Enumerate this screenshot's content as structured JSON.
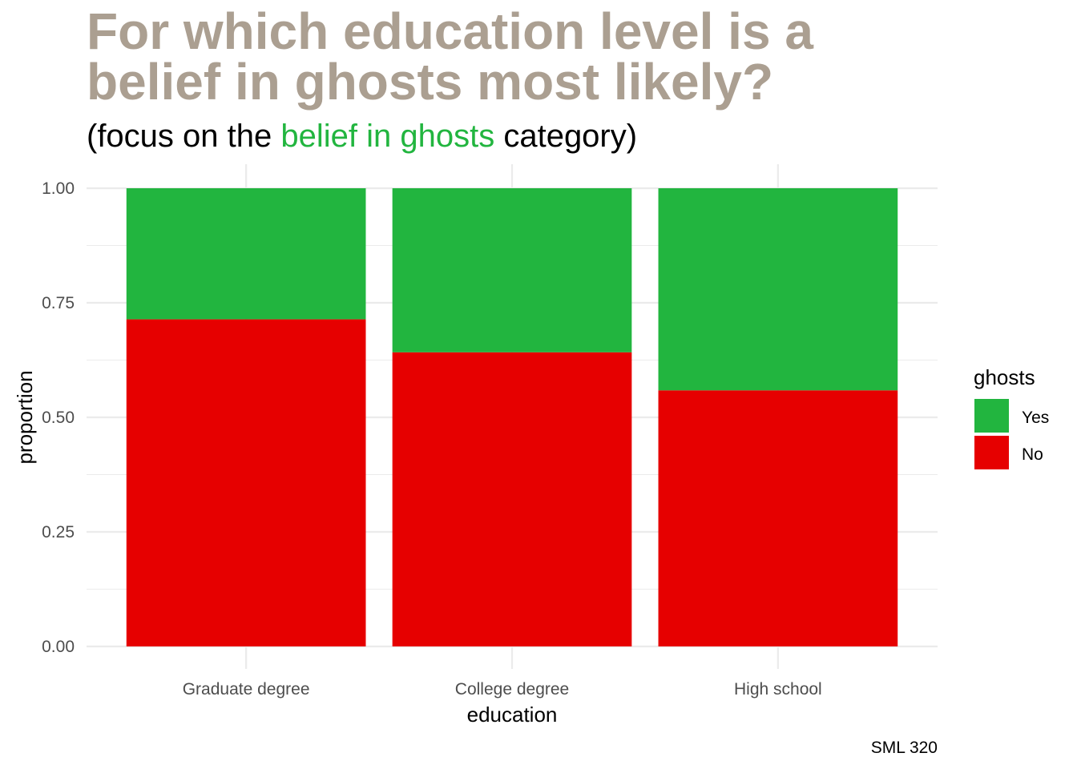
{
  "chart_data": {
    "type": "bar",
    "stacked": true,
    "title": [
      "For which education level is a",
      "belief in ghosts most likely?"
    ],
    "subtitle": {
      "before": "(focus on the ",
      "highlight": "belief in ghosts",
      "after": " category)"
    },
    "xlabel": "education",
    "ylabel": "proportion",
    "categories": [
      "Graduate degree",
      "College degree",
      "High school"
    ],
    "series": [
      {
        "name": "No",
        "values": [
          0.714,
          0.642,
          0.559
        ]
      },
      {
        "name": "Yes",
        "values": [
          0.286,
          0.358,
          0.441
        ]
      }
    ],
    "ylim": [
      0,
      1
    ],
    "yticks": [
      "0.00",
      "0.25",
      "0.50",
      "0.75",
      "1.00"
    ],
    "grid": true,
    "legend": {
      "title": "ghosts",
      "position": "right",
      "items": [
        "Yes",
        "No"
      ]
    },
    "caption": "SML 320",
    "colors": {
      "No": "#e60000",
      "Yes": "#22b53f",
      "title": "#ab9f91",
      "highlight": "#22b53f",
      "grid": "#ebebeb"
    }
  }
}
